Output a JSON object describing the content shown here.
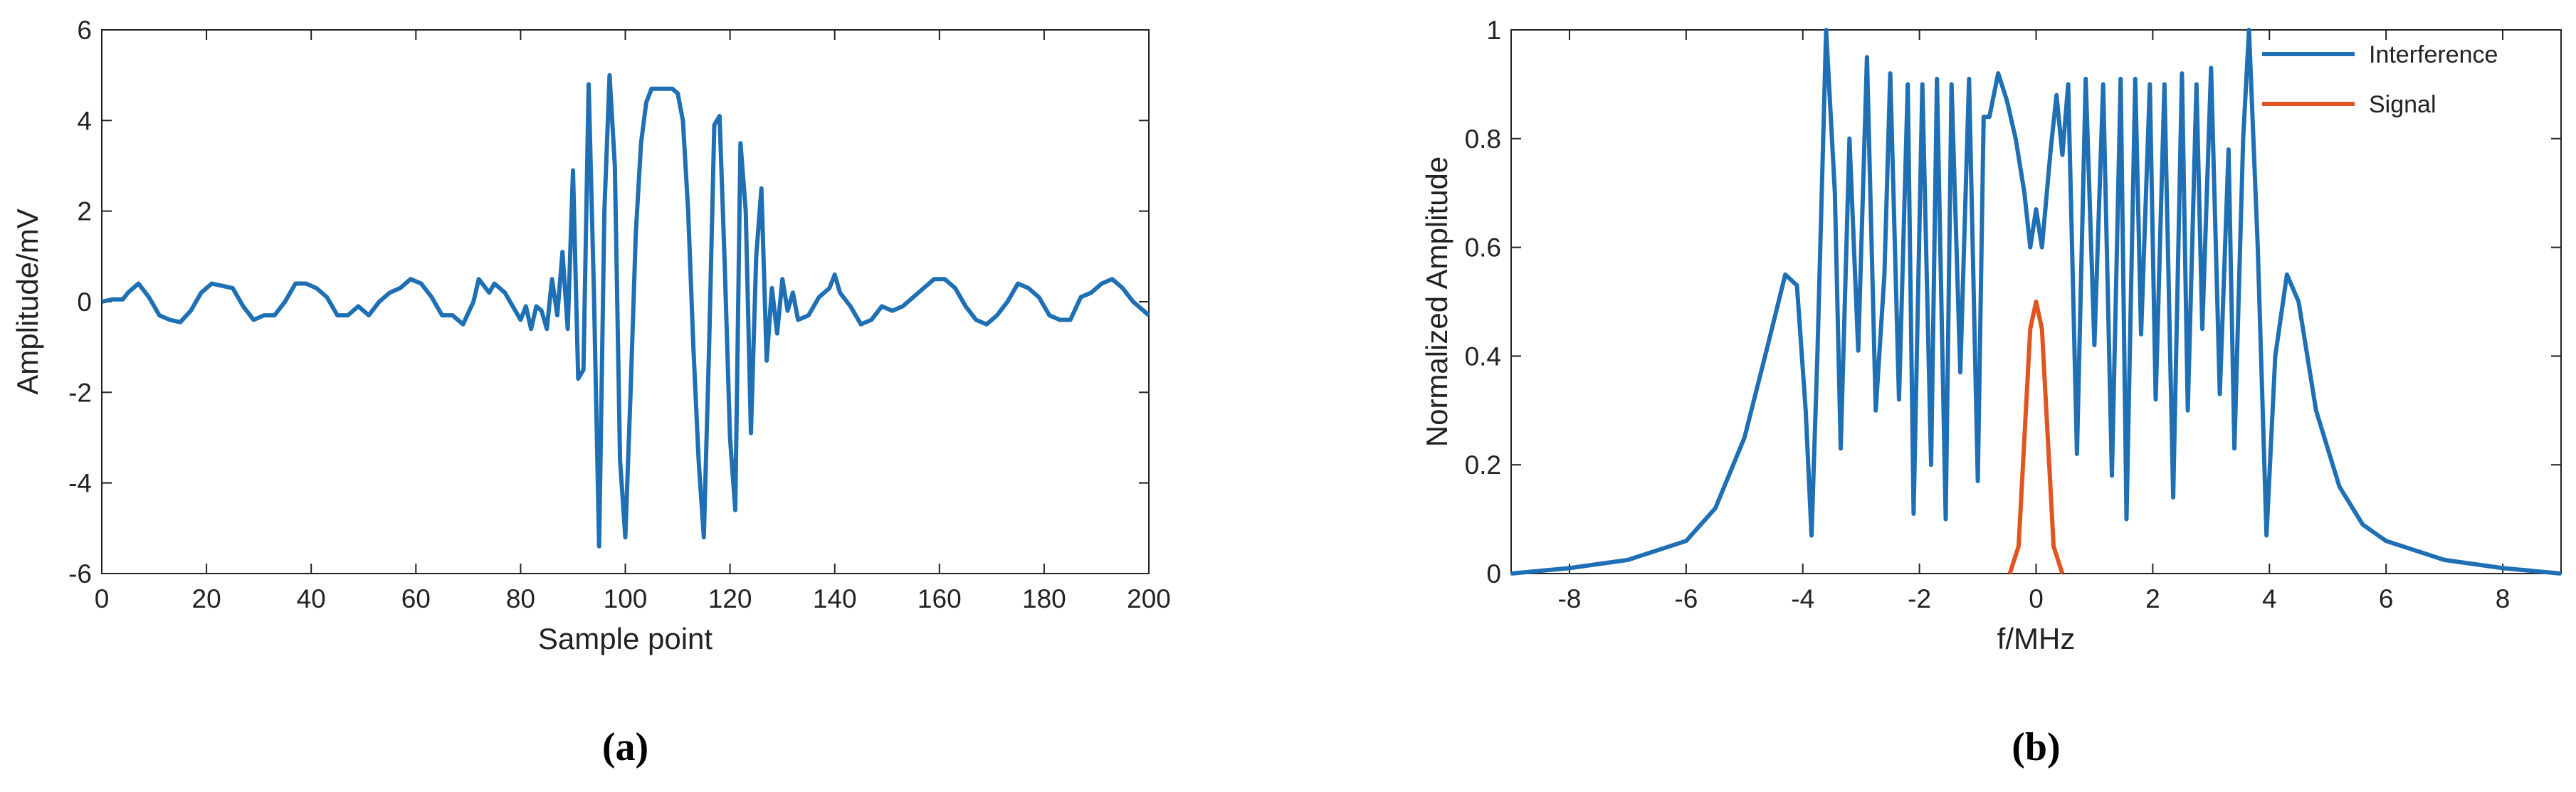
{
  "chart_data": [
    {
      "type": "line",
      "caption": "(a)",
      "xlabel": "Sample point",
      "ylabel": "Amplitude/mV",
      "xlim": [
        0,
        200
      ],
      "ylim": [
        -6,
        6
      ],
      "xticks": [
        0,
        20,
        40,
        60,
        80,
        100,
        120,
        140,
        160,
        180,
        200
      ],
      "yticks": [
        -6,
        -4,
        -2,
        0,
        2,
        4,
        6
      ],
      "series": [
        {
          "color": "#1f6fb4",
          "x": [
            0,
            2,
            4,
            5,
            7,
            9,
            11,
            13,
            15,
            17,
            19,
            21,
            23,
            25,
            27,
            29,
            31,
            33,
            35,
            37,
            39,
            41,
            43,
            45,
            47,
            49,
            51,
            53,
            55,
            57,
            59,
            61,
            63,
            65,
            67,
            69,
            71,
            72,
            74,
            75,
            77,
            79,
            80,
            81,
            82,
            83,
            84,
            85,
            86,
            87,
            88,
            89,
            90,
            91,
            92,
            93,
            94,
            95,
            96,
            97,
            98,
            99,
            100,
            101,
            102,
            103,
            104,
            105,
            106,
            107,
            108,
            109,
            110,
            111,
            112,
            113,
            114,
            115,
            116,
            117,
            118,
            119,
            120,
            121,
            122,
            123,
            124,
            125,
            126,
            127,
            128,
            129,
            130,
            131,
            132,
            133,
            135,
            137,
            139,
            140,
            141,
            143,
            145,
            147,
            149,
            151,
            153,
            155,
            157,
            159,
            161,
            163,
            165,
            167,
            169,
            171,
            173,
            175,
            177,
            179,
            181,
            183,
            185,
            187,
            189,
            191,
            193,
            195,
            197,
            199,
            200
          ],
          "values": [
            0,
            0.05,
            0.05,
            0.2,
            0.4,
            0.1,
            -0.3,
            -0.4,
            -0.45,
            -0.2,
            0.2,
            0.4,
            0.35,
            0.3,
            -0.1,
            -0.4,
            -0.3,
            -0.3,
            0,
            0.4,
            0.4,
            0.3,
            0.1,
            -0.3,
            -0.3,
            -0.1,
            -0.3,
            0,
            0.2,
            0.3,
            0.5,
            0.4,
            0.1,
            -0.3,
            -0.3,
            -0.5,
            0,
            0.5,
            0.2,
            0.4,
            0.2,
            -0.2,
            -0.4,
            -0.1,
            -0.6,
            -0.1,
            -0.2,
            -0.6,
            0.5,
            -0.3,
            1.1,
            -0.6,
            2.9,
            -1.7,
            -1.5,
            4.8,
            0.2,
            -5.4,
            2.0,
            5.0,
            3.0,
            -3.5,
            -5.2,
            -2.0,
            1.5,
            3.5,
            4.4,
            4.7,
            4.7,
            4.7,
            4.7,
            4.7,
            4.6,
            4.0,
            2.0,
            -1.0,
            -3.5,
            -5.2,
            -1.0,
            3.9,
            4.1,
            0.8,
            -3.0,
            -4.6,
            3.5,
            2.0,
            -2.9,
            1.0,
            2.5,
            -1.3,
            0.3,
            -0.7,
            0.5,
            -0.2,
            0.2,
            -0.4,
            -0.3,
            0.1,
            0.3,
            0.6,
            0.2,
            -0.1,
            -0.5,
            -0.4,
            -0.1,
            -0.2,
            -0.1,
            0.1,
            0.3,
            0.5,
            0.5,
            0.3,
            -0.1,
            -0.4,
            -0.5,
            -0.3,
            0,
            0.4,
            0.3,
            0.1,
            -0.3,
            -0.4,
            -0.4,
            0.1,
            0.2,
            0.4,
            0.5,
            0.3,
            0.0,
            -0.2,
            -0.3
          ]
        }
      ]
    },
    {
      "type": "line",
      "caption": "(b)",
      "xlabel": "f/MHz",
      "ylabel": "Normalized Amplitude",
      "xlim": [
        -9,
        9
      ],
      "ylim": [
        0,
        1
      ],
      "xticks": [
        -8,
        -6,
        -4,
        -2,
        0,
        2,
        4,
        6,
        8
      ],
      "yticks": [
        0,
        0.2,
        0.4,
        0.6,
        0.8,
        1
      ],
      "legend": "upper right",
      "series": [
        {
          "name": "Interference",
          "color": "#1f6fb4",
          "x": [
            -9,
            -8,
            -7,
            -6,
            -5.5,
            -5,
            -4.6,
            -4.3,
            -4.1,
            -3.95,
            -3.85,
            -3.75,
            -3.6,
            -3.45,
            -3.35,
            -3.2,
            -3.05,
            -2.9,
            -2.75,
            -2.6,
            -2.5,
            -2.35,
            -2.2,
            -2.1,
            -1.95,
            -1.8,
            -1.7,
            -1.55,
            -1.45,
            -1.3,
            -1.15,
            -1.0,
            -0.9,
            -0.8,
            -0.65,
            -0.5,
            -0.35,
            -0.2,
            -0.1,
            0,
            0.1,
            0.25,
            0.35,
            0.45,
            0.55,
            0.7,
            0.85,
            1.0,
            1.15,
            1.3,
            1.45,
            1.55,
            1.7,
            1.8,
            1.95,
            2.05,
            2.2,
            2.35,
            2.5,
            2.6,
            2.75,
            2.85,
            3.0,
            3.15,
            3.3,
            3.4,
            3.55,
            3.65,
            3.8,
            3.95,
            4.1,
            4.3,
            4.5,
            4.8,
            5.2,
            5.6,
            6,
            7,
            8,
            9
          ],
          "values": [
            0,
            0.01,
            0.025,
            0.06,
            0.12,
            0.25,
            0.42,
            0.55,
            0.53,
            0.3,
            0.07,
            0.4,
            1.0,
            0.7,
            0.23,
            0.8,
            0.41,
            0.95,
            0.3,
            0.55,
            0.92,
            0.32,
            0.9,
            0.11,
            0.9,
            0.2,
            0.91,
            0.1,
            0.9,
            0.37,
            0.91,
            0.17,
            0.84,
            0.84,
            0.92,
            0.87,
            0.8,
            0.7,
            0.6,
            0.67,
            0.6,
            0.78,
            0.88,
            0.77,
            0.9,
            0.22,
            0.91,
            0.42,
            0.9,
            0.18,
            0.91,
            0.1,
            0.91,
            0.44,
            0.9,
            0.32,
            0.9,
            0.14,
            0.92,
            0.3,
            0.9,
            0.45,
            0.93,
            0.33,
            0.78,
            0.23,
            0.8,
            1.0,
            0.6,
            0.07,
            0.4,
            0.55,
            0.5,
            0.3,
            0.16,
            0.09,
            0.06,
            0.025,
            0.01,
            0
          ]
        },
        {
          "name": "Signal",
          "color": "#e0541f",
          "x": [
            -0.45,
            -0.3,
            -0.2,
            -0.1,
            0,
            0.1,
            0.2,
            0.3,
            0.45
          ],
          "values": [
            0,
            0.05,
            0.25,
            0.45,
            0.5,
            0.45,
            0.25,
            0.05,
            0
          ]
        }
      ]
    }
  ]
}
